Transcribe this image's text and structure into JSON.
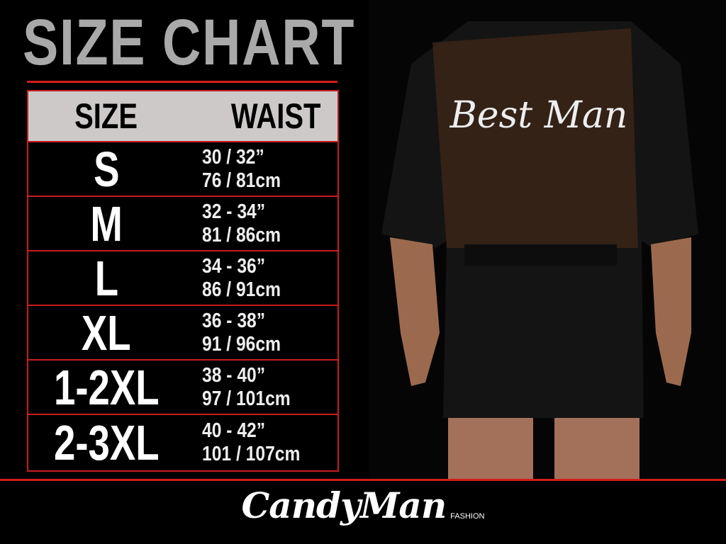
{
  "title": "SIZE CHART",
  "table": {
    "headers": [
      "SIZE",
      "WAIST"
    ],
    "rows": [
      {
        "size": "S",
        "inches": "30 / 32”",
        "cm": "76 / 81cm"
      },
      {
        "size": "M",
        "inches": "32 - 34”",
        "cm": "81 / 86cm"
      },
      {
        "size": "L",
        "inches": "34 - 36”",
        "cm": "86 / 91cm"
      },
      {
        "size": "XL",
        "inches": "36 - 38”",
        "cm": "91 / 96cm"
      },
      {
        "size": "1-2XL",
        "inches": "38 - 40”",
        "cm": "97 / 101cm"
      },
      {
        "size": "2-3XL",
        "inches": "40 - 42”",
        "cm": "101 / 107cm"
      }
    ]
  },
  "product": {
    "robe_text": "Best Man"
  },
  "brand": {
    "name": "CandyMan",
    "sub": "FASHION"
  },
  "colors": {
    "accent": "#d31c1c",
    "header_bg": "#cdc9c9",
    "title": "#a9a9a9"
  }
}
